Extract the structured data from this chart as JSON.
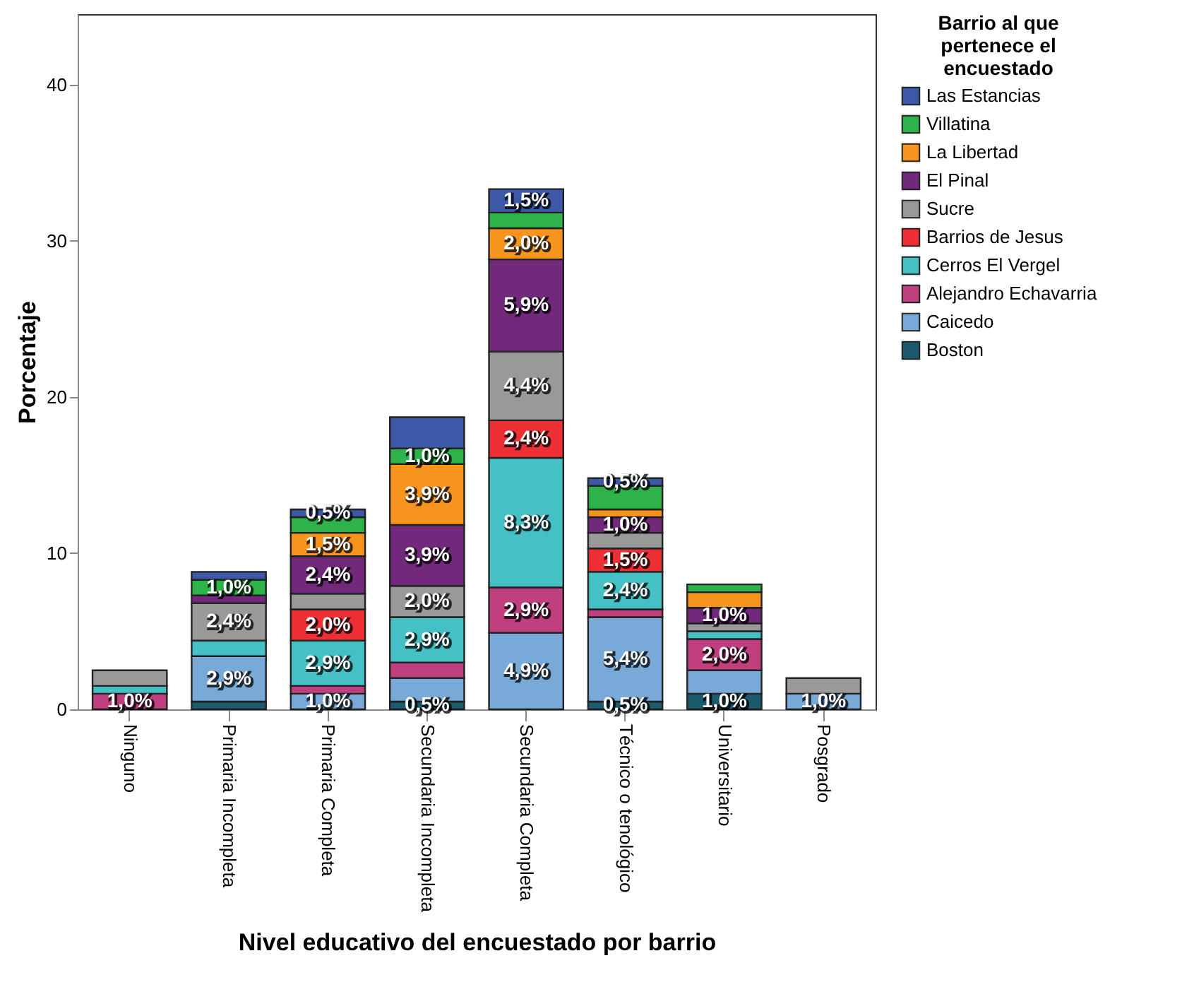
{
  "chart_data": {
    "type": "bar",
    "stacked": true,
    "xlabel": "Nivel educativo del encuestado por barrio",
    "ylabel": "Porcentaje",
    "legend_title": "Barrio al que pertenece el encuestado",
    "categories": [
      "Ninguno",
      "Primaria Incompleta",
      "Primaria Completa",
      "Secundaria Incompleta",
      "Secundaria Completa",
      "Técnico o tenológico",
      "Universitario",
      "Posgrado"
    ],
    "ylim": [
      0,
      44.5
    ],
    "yticks": [
      0,
      10,
      20,
      30,
      40
    ],
    "grid": false,
    "legend": "right",
    "series": [
      {
        "name": "Boston",
        "color": "#1c5a6e",
        "values": [
          null,
          0.5,
          null,
          0.5,
          null,
          0.5,
          1.0,
          null
        ],
        "value_labels": [
          null,
          null,
          null,
          "0,5%",
          null,
          "0,5%",
          "1,0%",
          null
        ]
      },
      {
        "name": "Caicedo",
        "color": "#79a9d6",
        "values": [
          null,
          2.9,
          1.0,
          1.5,
          4.9,
          5.4,
          1.5,
          1.0
        ],
        "value_labels": [
          null,
          "2,9%",
          "1,0%",
          null,
          "4,9%",
          "5,4%",
          null,
          "1,0%"
        ]
      },
      {
        "name": "Alejandro Echavarria",
        "color": "#bf3f7f",
        "values": [
          1.0,
          null,
          0.5,
          1.0,
          2.9,
          0.5,
          2.0,
          null
        ],
        "value_labels": [
          "1,0%",
          null,
          null,
          null,
          "2,9%",
          null,
          "2,0%",
          null
        ]
      },
      {
        "name": "Cerros El Vergel",
        "color": "#45c0c5",
        "values": [
          0.5,
          1.0,
          2.9,
          2.9,
          8.3,
          2.4,
          0.5,
          null
        ],
        "value_labels": [
          null,
          null,
          "2,9%",
          "2,9%",
          "8,3%",
          "2,4%",
          null,
          null
        ]
      },
      {
        "name": "Barrios de Jesus",
        "color": "#ee3036",
        "values": [
          null,
          null,
          2.0,
          null,
          2.4,
          1.5,
          null,
          null
        ],
        "value_labels": [
          null,
          null,
          "2,0%",
          null,
          "2,4%",
          "1,5%",
          null,
          null
        ]
      },
      {
        "name": "Sucre",
        "color": "#999999",
        "values": [
          1.0,
          2.4,
          1.0,
          2.0,
          4.4,
          1.0,
          0.5,
          1.0
        ],
        "value_labels": [
          null,
          "2,4%",
          null,
          "2,0%",
          "4,4%",
          null,
          null,
          null
        ]
      },
      {
        "name": "El Pinal",
        "color": "#72297b",
        "values": [
          null,
          0.5,
          2.4,
          3.9,
          5.9,
          1.0,
          1.0,
          null
        ],
        "value_labels": [
          null,
          null,
          "2,4%",
          "3,9%",
          "5,9%",
          "1,0%",
          "1,0%",
          null
        ]
      },
      {
        "name": "La Libertad",
        "color": "#f7941d",
        "values": [
          null,
          null,
          1.5,
          3.9,
          2.0,
          0.5,
          1.0,
          null
        ],
        "value_labels": [
          null,
          null,
          "1,5%",
          "3,9%",
          "2,0%",
          null,
          null,
          null
        ]
      },
      {
        "name": "Villatina",
        "color": "#2db34a",
        "values": [
          null,
          1.0,
          1.0,
          1.0,
          1.0,
          1.5,
          0.5,
          null
        ],
        "value_labels": [
          null,
          "1,0%",
          null,
          "1,0%",
          null,
          null,
          null,
          null
        ]
      },
      {
        "name": "Las Estancias",
        "color": "#3e58a8",
        "values": [
          null,
          0.5,
          0.5,
          2.0,
          1.5,
          0.5,
          null,
          null
        ],
        "value_labels": [
          null,
          null,
          "0,5%",
          null,
          "1,5%",
          "0,5%",
          null,
          null
        ]
      }
    ]
  }
}
